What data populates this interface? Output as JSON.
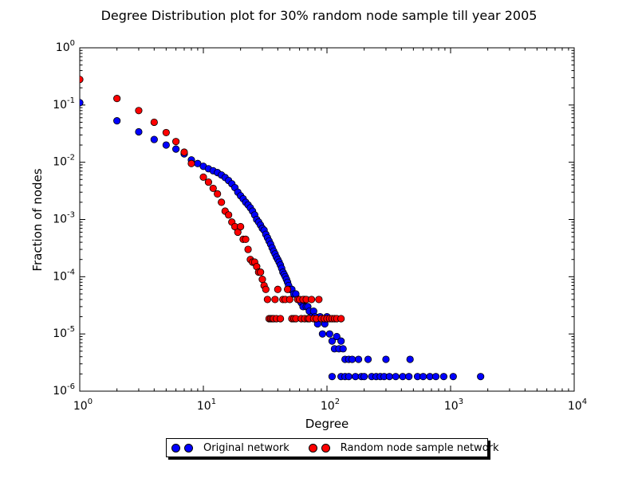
{
  "chart_data": {
    "type": "scatter",
    "title": "Degree Distribution plot for 30% random node sample till year 2005",
    "xlabel": "Degree",
    "ylabel": "Fraction of nodes",
    "xscale": "log",
    "yscale": "log",
    "xlim": [
      1,
      10000
    ],
    "ylim": [
      1e-06,
      1
    ],
    "x_tick_labels": [
      {
        "base": "10",
        "exp": "0"
      },
      {
        "base": "10",
        "exp": "1"
      },
      {
        "base": "10",
        "exp": "2"
      },
      {
        "base": "10",
        "exp": "3"
      },
      {
        "base": "10",
        "exp": "4"
      }
    ],
    "y_tick_labels": [
      {
        "base": "10",
        "exp": "-6"
      },
      {
        "base": "10",
        "exp": "-5"
      },
      {
        "base": "10",
        "exp": "-4"
      },
      {
        "base": "10",
        "exp": "-3"
      },
      {
        "base": "10",
        "exp": "-2"
      },
      {
        "base": "10",
        "exp": "-1"
      },
      {
        "base": "10",
        "exp": "0"
      }
    ],
    "grid": false,
    "legend_position": "bottom-center, below axes",
    "series": [
      {
        "name": "Original network",
        "color": "#0000ff",
        "x": [
          1,
          2,
          3,
          4,
          5,
          6,
          7,
          8,
          9,
          10,
          11,
          12,
          13,
          14,
          15,
          16,
          17,
          18,
          19,
          20,
          21,
          22,
          23,
          24,
          25,
          26,
          27,
          28,
          29,
          30,
          31,
          32,
          33,
          34,
          35,
          36,
          37,
          38,
          39,
          40,
          41,
          42,
          43,
          44,
          45,
          46,
          47,
          48,
          49,
          50,
          52,
          54,
          56,
          58,
          60,
          62,
          64,
          66,
          68,
          70,
          72,
          75,
          78,
          80,
          84,
          88,
          92,
          96,
          100,
          105,
          110,
          110,
          115,
          120,
          125,
          130,
          130,
          135,
          140,
          140,
          150,
          150,
          160,
          170,
          180,
          190,
          200,
          215,
          230,
          250,
          270,
          290,
          300,
          320,
          360,
          410,
          460,
          470,
          540,
          600,
          680,
          760,
          880,
          1050,
          1750
        ],
        "y": [
          0.11,
          0.053,
          0.034,
          0.025,
          0.02,
          0.017,
          0.014,
          0.011,
          0.0095,
          0.0085,
          0.0077,
          0.0071,
          0.0066,
          0.006,
          0.0054,
          0.0048,
          0.0042,
          0.0036,
          0.003,
          0.0026,
          0.0023,
          0.002,
          0.0018,
          0.0016,
          0.0014,
          0.0012,
          0.001,
          0.0009,
          0.0008,
          0.0007,
          0.00065,
          0.00055,
          0.00048,
          0.00042,
          0.00037,
          0.00032,
          0.00028,
          0.00025,
          0.00022,
          0.0002,
          0.00018,
          0.00016,
          0.00014,
          0.00012,
          0.00011,
          0.0001,
          9e-05,
          8e-05,
          7e-05,
          6e-05,
          6e-05,
          5e-05,
          5e-05,
          4e-05,
          4e-05,
          3.5e-05,
          3e-05,
          4e-05,
          3e-05,
          3e-05,
          2.5e-05,
          2e-05,
          2.5e-05,
          2e-05,
          1.5e-05,
          2e-05,
          1e-05,
          1.5e-05,
          2e-05,
          1e-05,
          7.5e-06,
          1.8e-06,
          5.5e-06,
          9e-06,
          5.5e-06,
          7.5e-06,
          1.8e-06,
          5.5e-06,
          3.6e-06,
          1.8e-06,
          3.6e-06,
          1.8e-06,
          3.6e-06,
          1.8e-06,
          3.6e-06,
          1.8e-06,
          1.8e-06,
          3.6e-06,
          1.8e-06,
          1.8e-06,
          1.8e-06,
          1.8e-06,
          3.6e-06,
          1.8e-06,
          1.8e-06,
          1.8e-06,
          1.8e-06,
          3.6e-06,
          1.8e-06,
          1.8e-06,
          1.8e-06,
          1.8e-06,
          1.8e-06,
          1.8e-06,
          1.8e-06
        ]
      },
      {
        "name": "Random node sample network",
        "color": "#ff0000",
        "x": [
          1,
          2,
          3,
          4,
          5,
          6,
          7,
          8,
          10,
          11,
          12,
          13,
          14,
          15,
          16,
          17,
          18,
          19,
          20,
          21,
          22,
          23,
          24,
          25,
          26,
          27,
          28,
          29,
          30,
          31,
          32,
          33,
          34,
          35,
          36,
          37,
          38,
          39,
          40,
          42,
          44,
          46,
          48,
          50,
          52,
          54,
          56,
          58,
          60,
          62,
          64,
          66,
          68,
          70,
          72,
          75,
          78,
          82,
          86,
          90,
          95,
          100,
          105,
          110,
          115,
          120,
          130
        ],
        "y": [
          0.28,
          0.13,
          0.08,
          0.05,
          0.033,
          0.023,
          0.015,
          0.0095,
          0.0055,
          0.0045,
          0.0035,
          0.0028,
          0.002,
          0.0014,
          0.0012,
          0.0009,
          0.00075,
          0.0006,
          0.00075,
          0.00045,
          0.00045,
          0.0003,
          0.0002,
          0.00018,
          0.00018,
          0.00015,
          0.00012,
          0.00012,
          9e-05,
          7e-05,
          6e-05,
          4e-05,
          1.85e-05,
          1.85e-05,
          1.85e-05,
          1.85e-05,
          4e-05,
          1.85e-05,
          6e-05,
          1.85e-05,
          4e-05,
          4e-05,
          6e-05,
          4e-05,
          1.85e-05,
          1.85e-05,
          1.85e-05,
          4e-05,
          4e-05,
          1.85e-05,
          4e-05,
          1.85e-05,
          4e-05,
          1.85e-05,
          1.85e-05,
          4e-05,
          1.85e-05,
          1.85e-05,
          4e-05,
          1.85e-05,
          1.85e-05,
          1.85e-05,
          1.85e-05,
          1.85e-05,
          1.85e-05,
          1.85e-05,
          1.85e-05
        ]
      }
    ]
  }
}
